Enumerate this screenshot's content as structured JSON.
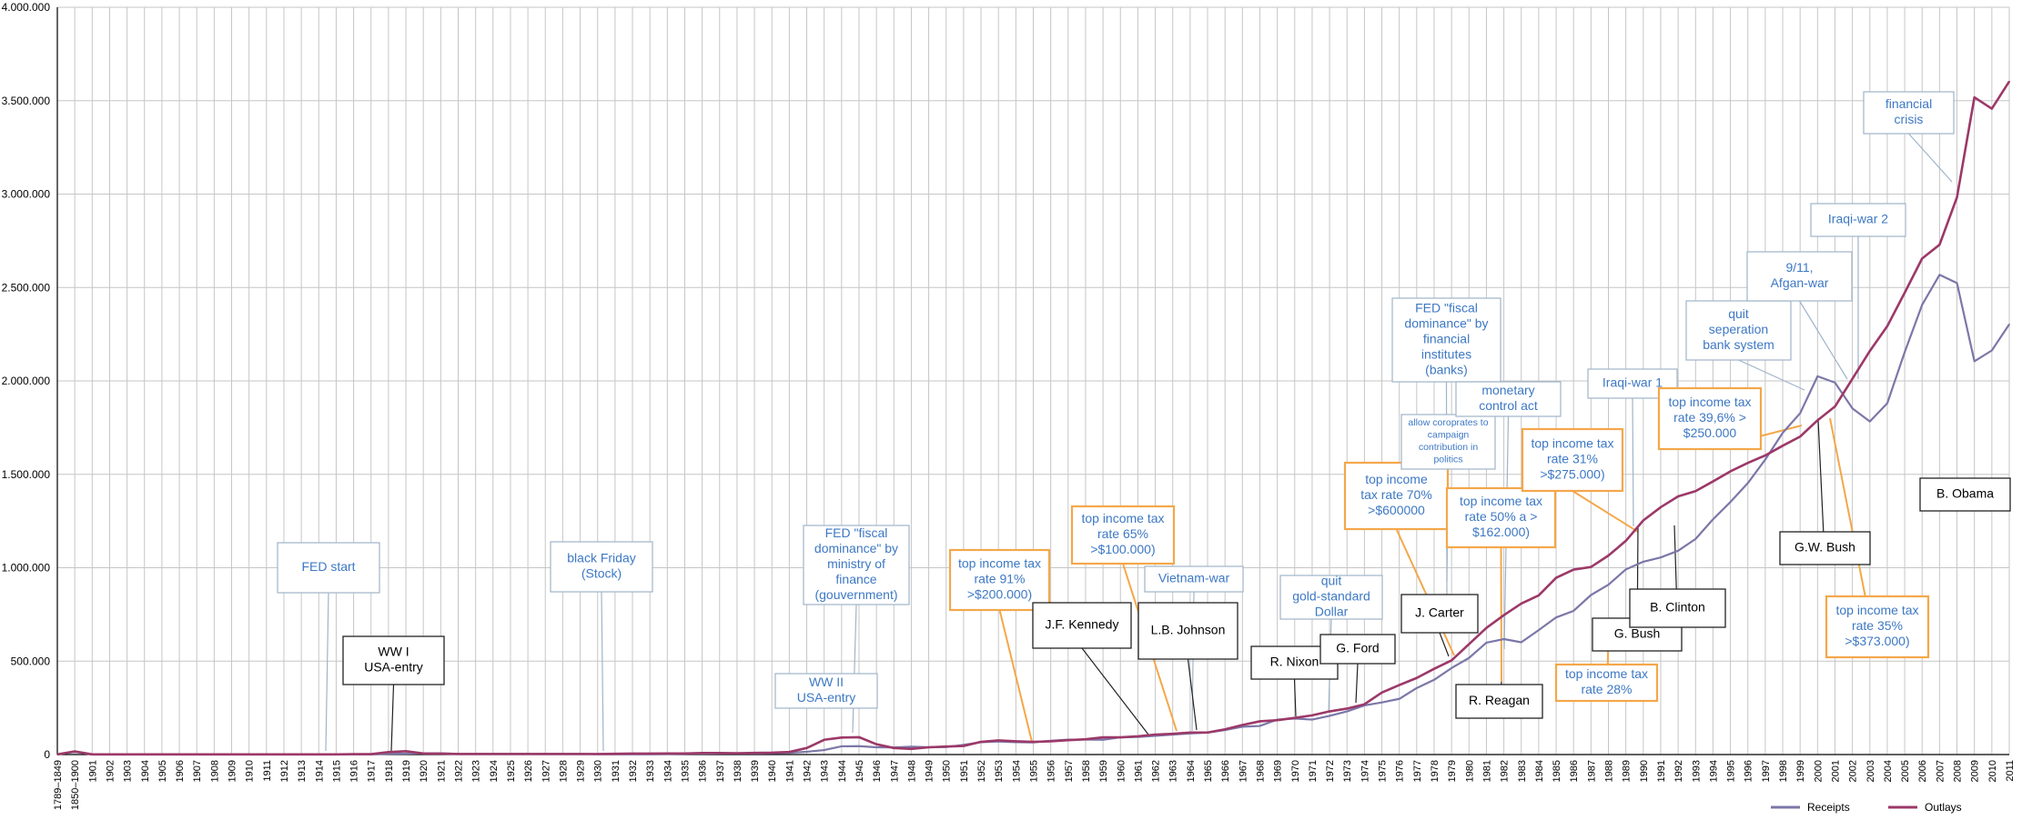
{
  "chart_data": {
    "type": "line",
    "title": "",
    "xlabel": "",
    "ylabel": "",
    "ylim": [
      0,
      4000000
    ],
    "grid": true,
    "legend_position": "bottom-right",
    "y_ticks": [
      "0",
      "500.000",
      "1.000.000",
      "1.500.000",
      "2.000.000",
      "2.500.000",
      "3.000.000",
      "3.500.000",
      "4.000.000"
    ],
    "categories": [
      "1789–1849",
      "1850–1900",
      "1901",
      "1902",
      "1903",
      "1904",
      "1905",
      "1906",
      "1907",
      "1908",
      "1909",
      "1910",
      "1911",
      "1912",
      "1913",
      "1914",
      "1915",
      "1916",
      "1917",
      "1918",
      "1919",
      "1920",
      "1921",
      "1922",
      "1923",
      "1924",
      "1925",
      "1926",
      "1927",
      "1928",
      "1929",
      "1930",
      "1931",
      "1932",
      "1933",
      "1934",
      "1935",
      "1936",
      "1937",
      "1938",
      "1939",
      "1940",
      "1941",
      "1942",
      "1943",
      "1944",
      "1945",
      "1946",
      "1947",
      "1948",
      "1949",
      "1950",
      "1951",
      "1952",
      "1953",
      "1954",
      "1955",
      "1956",
      "1957",
      "1958",
      "1959",
      "1960",
      "1961",
      "1962",
      "1963",
      "1964",
      "1965",
      "1966",
      "1967",
      "1968",
      "1969",
      "1970",
      "1971",
      "1972",
      "1973",
      "1974",
      "1975",
      "1976",
      "1977",
      "1978",
      "1979",
      "1980",
      "1981",
      "1982",
      "1983",
      "1984",
      "1985",
      "1986",
      "1987",
      "1988",
      "1989",
      "1990",
      "1991",
      "1992",
      "1993",
      "1994",
      "1995",
      "1996",
      "1997",
      "1998",
      "1999",
      "2000",
      "2001",
      "2002",
      "2003",
      "2004",
      "2005",
      "2006",
      "2007",
      "2008",
      "2009",
      "2010",
      "2011"
    ],
    "series": [
      {
        "name": "Receipts",
        "color": "#7b77a8",
        "values": [
          1000,
          14000,
          1000,
          1000,
          1000,
          1000,
          1000,
          1000,
          1000,
          1000,
          1000,
          1000,
          1000,
          1000,
          1000,
          1000,
          1000,
          1000,
          1000,
          4000,
          5000,
          7000,
          6000,
          4000,
          4000,
          4000,
          4000,
          4000,
          4000,
          4000,
          4000,
          2000,
          2000,
          2000,
          2000,
          3000,
          4000,
          5000,
          6000,
          7000,
          6000,
          7000,
          9000,
          15000,
          24000,
          44000,
          45000,
          39000,
          38000,
          42000,
          39000,
          40000,
          52000,
          66000,
          70000,
          66000,
          65000,
          74000,
          80000,
          80000,
          79000,
          92000,
          94000,
          100000,
          107000,
          113000,
          117000,
          131000,
          149000,
          153000,
          187000,
          193000,
          187000,
          207000,
          231000,
          263000,
          279000,
          298000,
          356000,
          400000,
          463000,
          517000,
          599000,
          618000,
          601000,
          666000,
          734000,
          769000,
          854000,
          909000,
          991000,
          1032000,
          1055000,
          1091000,
          1154000,
          1259000,
          1352000,
          1453000,
          1579000,
          1722000,
          1827000,
          2025000,
          1991000,
          1853000,
          1783000,
          1880000,
          2154000,
          2407000,
          2568000,
          2524000,
          2105000,
          2163000,
          2303000
        ]
      },
      {
        "name": "Outlays",
        "color": "#9c3868",
        "values": [
          1000,
          17000,
          1000,
          1000,
          1000,
          1000,
          1000,
          1000,
          1000,
          1000,
          1000,
          1000,
          1000,
          1000,
          1000,
          1000,
          1000,
          2000,
          2000,
          13000,
          18000,
          6000,
          5000,
          3000,
          3000,
          3000,
          3000,
          3000,
          3000,
          3000,
          3000,
          3000,
          4000,
          5000,
          5000,
          6000,
          6000,
          8000,
          8000,
          7000,
          9000,
          10000,
          14000,
          35000,
          79000,
          91000,
          93000,
          55000,
          35000,
          30000,
          39000,
          43000,
          46000,
          68000,
          76000,
          71000,
          68000,
          71000,
          77000,
          82000,
          92000,
          92000,
          98000,
          107000,
          111000,
          118000,
          118000,
          135000,
          158000,
          178000,
          184000,
          196000,
          210000,
          231000,
          246000,
          269000,
          332000,
          372000,
          410000,
          459000,
          504000,
          591000,
          678000,
          746000,
          808000,
          852000,
          946000,
          990000,
          1004000,
          1065000,
          1144000,
          1253000,
          1324000,
          1382000,
          1410000,
          1462000,
          1516000,
          1561000,
          1601000,
          1653000,
          1702000,
          1789000,
          1863000,
          2011000,
          2160000,
          2293000,
          2472000,
          2655000,
          2729000,
          2983000,
          3518000,
          3457000,
          3603000
        ]
      }
    ],
    "annotations": [
      {
        "text": "FED start",
        "color": "blue"
      },
      {
        "text": "WW I USA-entry",
        "color": "black"
      },
      {
        "text": "black Friday (Stock)",
        "color": "blue"
      },
      {
        "text": "FED \"fiscal dominance\" by ministry of finance (gouvernment)",
        "color": "blue"
      },
      {
        "text": "WW II USA-entry",
        "color": "blue"
      },
      {
        "text": "top income tax rate 91% >$200.000)",
        "color": "orange"
      },
      {
        "text": "J.F. Kennedy",
        "color": "black"
      },
      {
        "text": "top income tax rate 65% >$100.000)",
        "color": "orange"
      },
      {
        "text": "Vietnam-war",
        "color": "blue"
      },
      {
        "text": "L.B. Johnson",
        "color": "black"
      },
      {
        "text": "quit gold-standard Dollar",
        "color": "blue"
      },
      {
        "text": "R. Nixon",
        "color": "black"
      },
      {
        "text": "G. Ford",
        "color": "black"
      },
      {
        "text": "J. Carter",
        "color": "black"
      },
      {
        "text": "top income tax rate 70% >$600000",
        "color": "orange"
      },
      {
        "text": "FED \"fiscal dominance\" by financial institutes (banks)",
        "color": "blue"
      },
      {
        "text": "allow coroprates to campaign contribution in politics",
        "color": "blue"
      },
      {
        "text": "monetary control act",
        "color": "blue"
      },
      {
        "text": "top income tax rate 50% a > $162.000)",
        "color": "orange"
      },
      {
        "text": "R. Reagan",
        "color": "black"
      },
      {
        "text": "top income tax rate 31% >$275.000)",
        "color": "orange"
      },
      {
        "text": "Iraqi-war 1",
        "color": "blue"
      },
      {
        "text": "top income tax rate 28%",
        "color": "orange"
      },
      {
        "text": "G. Bush",
        "color": "black"
      },
      {
        "text": "B. Clinton",
        "color": "black"
      },
      {
        "text": "top income tax rate 39,6% > $250.000",
        "color": "orange"
      },
      {
        "text": "quit seperation bank system",
        "color": "blue"
      },
      {
        "text": "9/11, Afgan-war",
        "color": "blue"
      },
      {
        "text": "Iraqi-war 2",
        "color": "blue"
      },
      {
        "text": "G.W. Bush",
        "color": "black"
      },
      {
        "text": "top income tax rate 35% >$373.000)",
        "color": "orange"
      },
      {
        "text": "financial crisis",
        "color": "blue"
      },
      {
        "text": "B. Obama",
        "color": "black"
      }
    ]
  }
}
